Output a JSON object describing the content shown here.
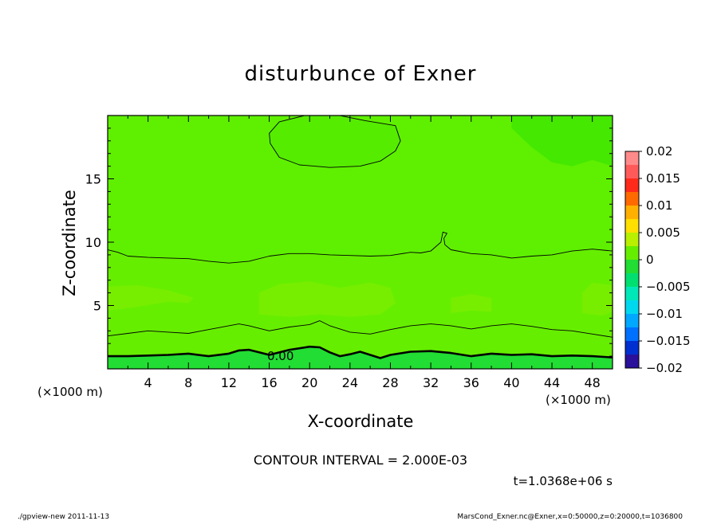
{
  "chart_data": {
    "type": "heatmap",
    "title": "disturbunce of Exner",
    "xlabel": "X-coordinate",
    "ylabel": "Z-coordinate",
    "x_unit": "(×1000 m)",
    "xlim": [
      0,
      50
    ],
    "ylim": [
      0,
      20
    ],
    "x_ticks": [
      4,
      8,
      12,
      16,
      20,
      24,
      28,
      32,
      36,
      40,
      44,
      48
    ],
    "y_ticks": [
      5,
      10,
      15
    ],
    "colorbar": {
      "range": [
        -0.02,
        0.02
      ],
      "tick_values": [
        0.02,
        0.015,
        0.01,
        0.005,
        0,
        -0.005,
        -0.01,
        -0.015,
        -0.02
      ],
      "tick_labels": [
        "0.02",
        "0.015",
        "0.01",
        "0.005",
        "0",
        "−0.005",
        "−0.01",
        "−0.015",
        "−0.02"
      ],
      "bands": [
        {
          "from": 0.0175,
          "to": 0.02,
          "color": "#ff8a8a"
        },
        {
          "from": 0.015,
          "to": 0.0175,
          "color": "#ff5a5a"
        },
        {
          "from": 0.0125,
          "to": 0.015,
          "color": "#ff2a1a"
        },
        {
          "from": 0.01,
          "to": 0.0125,
          "color": "#ff6a00"
        },
        {
          "from": 0.0075,
          "to": 0.01,
          "color": "#ffb000"
        },
        {
          "from": 0.005,
          "to": 0.0075,
          "color": "#ffe000"
        },
        {
          "from": 0.0025,
          "to": 0.005,
          "color": "#b8f000"
        },
        {
          "from": 0.0,
          "to": 0.0025,
          "color": "#66ee00"
        },
        {
          "from": -0.0025,
          "to": 0.0,
          "color": "#22dd33"
        },
        {
          "from": -0.005,
          "to": -0.0025,
          "color": "#00e070"
        },
        {
          "from": -0.0075,
          "to": -0.005,
          "color": "#00e8b8"
        },
        {
          "from": -0.01,
          "to": -0.0075,
          "color": "#00d8f0"
        },
        {
          "from": -0.0125,
          "to": -0.01,
          "color": "#00a8ff"
        },
        {
          "from": -0.015,
          "to": -0.0125,
          "color": "#0070ff"
        },
        {
          "from": -0.0175,
          "to": -0.015,
          "color": "#0030d0"
        },
        {
          "from": -0.02,
          "to": -0.0175,
          "color": "#2a109a"
        }
      ]
    },
    "regions": [
      {
        "desc": "background",
        "value_range": [
          0.0,
          0.002
        ],
        "color": "#5ef000"
      },
      {
        "desc": "lower band z 1-9",
        "value_range": [
          0.002,
          0.004
        ],
        "color": "#66ee00"
      },
      {
        "desc": "patches z 4-7",
        "value_range": [
          0.004,
          0.006
        ],
        "color": "#77ee00"
      },
      {
        "desc": "near-surface layer",
        "value_range": [
          -0.002,
          0.0
        ],
        "color": "#22dd33"
      },
      {
        "desc": "upper right corner",
        "value_range": [
          -0.002,
          0.0
        ],
        "color": "#44e800"
      }
    ],
    "contour_interval": "CONTOUR INTERVAL = 2.000E-03",
    "contour_label": "0.00",
    "contours": [
      {
        "level": 0.0,
        "emphasis": "thick",
        "points": [
          [
            0,
            1
          ],
          [
            2,
            1
          ],
          [
            4,
            1.05
          ],
          [
            6,
            1.1
          ],
          [
            8,
            1.2
          ],
          [
            10,
            1
          ],
          [
            12,
            1.2
          ],
          [
            13,
            1.45
          ],
          [
            14,
            1.5
          ],
          [
            15,
            1.3
          ],
          [
            16,
            1.1
          ],
          [
            18,
            1.5
          ],
          [
            20,
            1.75
          ],
          [
            21,
            1.7
          ],
          [
            22,
            1.3
          ],
          [
            23,
            1.0
          ],
          [
            24,
            1.15
          ],
          [
            25,
            1.35
          ],
          [
            26,
            1.1
          ],
          [
            27,
            0.85
          ],
          [
            28,
            1.1
          ],
          [
            30,
            1.35
          ],
          [
            32,
            1.4
          ],
          [
            34,
            1.25
          ],
          [
            36,
            1.0
          ],
          [
            38,
            1.2
          ],
          [
            40,
            1.1
          ],
          [
            42,
            1.15
          ],
          [
            44,
            1.0
          ],
          [
            46,
            1.05
          ],
          [
            48,
            1.0
          ],
          [
            50,
            0.9
          ]
        ]
      },
      {
        "level": 0.002,
        "emphasis": "thin",
        "points": [
          [
            0,
            2.6
          ],
          [
            2,
            2.8
          ],
          [
            4,
            3.0
          ],
          [
            6,
            2.9
          ],
          [
            8,
            2.8
          ],
          [
            10,
            3.1
          ],
          [
            12,
            3.4
          ],
          [
            13,
            3.55
          ],
          [
            14,
            3.4
          ],
          [
            16,
            3.0
          ],
          [
            18,
            3.3
          ],
          [
            20,
            3.5
          ],
          [
            21,
            3.8
          ],
          [
            22,
            3.4
          ],
          [
            24,
            2.9
          ],
          [
            26,
            2.75
          ],
          [
            28,
            3.1
          ],
          [
            30,
            3.4
          ],
          [
            32,
            3.55
          ],
          [
            34,
            3.4
          ],
          [
            36,
            3.15
          ],
          [
            38,
            3.4
          ],
          [
            40,
            3.55
          ],
          [
            42,
            3.35
          ],
          [
            44,
            3.1
          ],
          [
            46,
            3.0
          ],
          [
            48,
            2.75
          ],
          [
            50,
            2.5
          ]
        ]
      },
      {
        "level": 0.004,
        "emphasis": "thin",
        "points": [
          [
            0,
            9.4
          ],
          [
            1,
            9.2
          ],
          [
            2,
            8.9
          ],
          [
            4,
            8.8
          ],
          [
            6,
            8.75
          ],
          [
            8,
            8.7
          ],
          [
            10,
            8.5
          ],
          [
            12,
            8.35
          ],
          [
            14,
            8.5
          ],
          [
            16,
            8.9
          ],
          [
            18,
            9.1
          ],
          [
            20,
            9.1
          ],
          [
            22,
            9.0
          ],
          [
            24,
            8.95
          ],
          [
            26,
            8.9
          ],
          [
            28,
            8.95
          ],
          [
            30,
            9.2
          ],
          [
            31,
            9.15
          ],
          [
            32,
            9.3
          ],
          [
            33,
            10.0
          ],
          [
            33.2,
            10.8
          ],
          [
            33.6,
            10.7
          ],
          [
            33.3,
            10.3
          ],
          [
            33.4,
            9.8
          ],
          [
            34,
            9.4
          ],
          [
            36,
            9.1
          ],
          [
            38,
            9.0
          ],
          [
            40,
            8.75
          ],
          [
            42,
            8.9
          ],
          [
            44,
            9.0
          ],
          [
            46,
            9.3
          ],
          [
            48,
            9.45
          ],
          [
            50,
            9.3
          ]
        ]
      },
      {
        "level": -0.002,
        "emphasis": "thin",
        "closed": true,
        "points": [
          [
            16,
            18.6
          ],
          [
            17,
            19.5
          ],
          [
            19.5,
            20
          ],
          [
            23,
            20
          ],
          [
            25.5,
            19.6
          ],
          [
            28.5,
            19.2
          ],
          [
            29,
            18
          ],
          [
            28.5,
            17.2
          ],
          [
            27,
            16.4
          ],
          [
            25,
            16.0
          ],
          [
            22,
            15.9
          ],
          [
            19,
            16.1
          ],
          [
            17,
            16.7
          ],
          [
            16.1,
            17.8
          ]
        ]
      }
    ],
    "time_label": "t=1.0368e+06 s"
  },
  "footer": {
    "left": "./gpview-new   2011-11-13",
    "right": "MarsCond_Exner.nc@Exner,x=0:50000,z=0:20000,t=1036800"
  }
}
